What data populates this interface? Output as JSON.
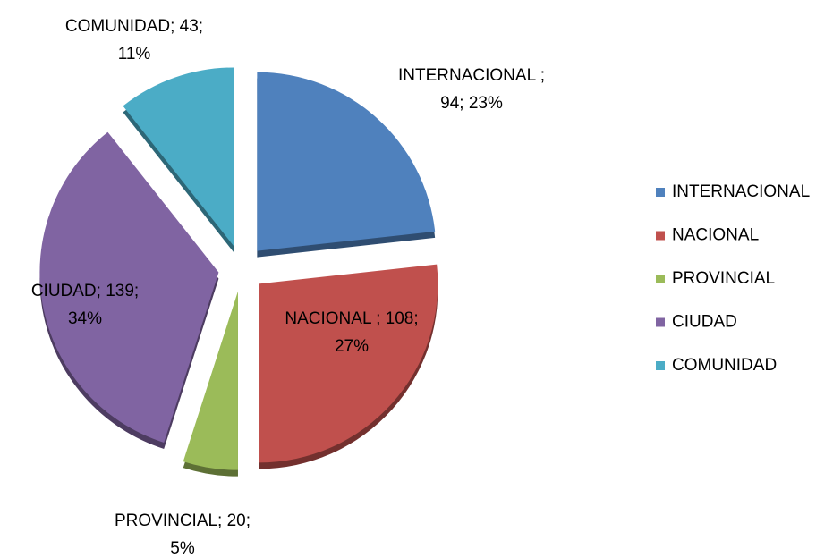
{
  "chart_data": {
    "type": "pie",
    "categories": [
      "INTERNACIONAL",
      "NACIONAL",
      "PROVINCIAL",
      "CIUDAD",
      "COMUNIDAD"
    ],
    "values": [
      94,
      108,
      20,
      139,
      43
    ],
    "value_labels": [
      [
        "INTERNACIONAL ;",
        "94; 23%"
      ],
      [
        "NACIONAL ; 108;",
        "27%"
      ],
      [
        "PROVINCIAL; 20;",
        "5%"
      ],
      [
        "CIUDAD; 139;",
        "34%"
      ],
      [
        "COMUNIDAD; 43;",
        "11%"
      ]
    ],
    "colors": [
      "#4f81bd",
      "#c0504d",
      "#9bbb59",
      "#8064a2",
      "#4bacc6"
    ],
    "legend": "right"
  }
}
